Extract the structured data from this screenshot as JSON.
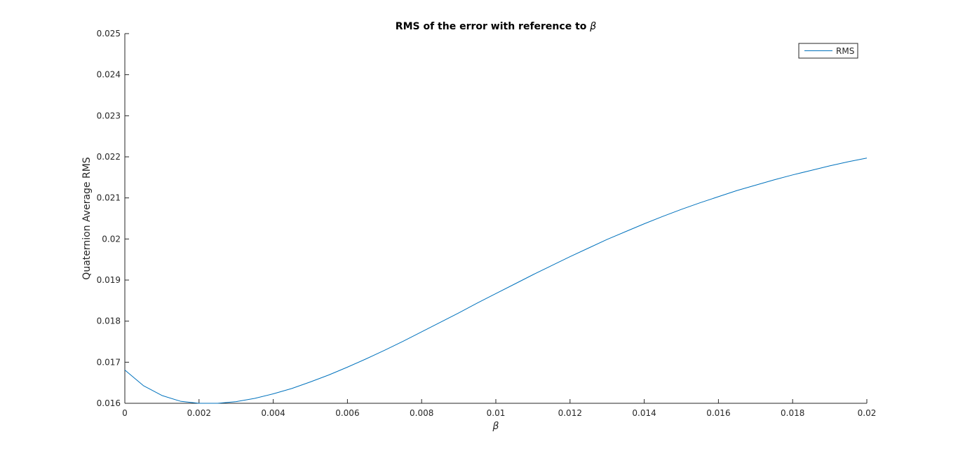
{
  "chart_data": {
    "type": "line",
    "title": "RMS of the error with reference to ",
    "title_symbol": "β",
    "xlabel": "β",
    "ylabel": "Quaternion Average RMS",
    "xlim": [
      0,
      0.02
    ],
    "ylim": [
      0.016,
      0.025
    ],
    "xticks": [
      "0",
      "0.002",
      "0.004",
      "0.006",
      "0.008",
      "0.01",
      "0.012",
      "0.014",
      "0.016",
      "0.018",
      "0.02"
    ],
    "yticks": [
      "0.016",
      "0.017",
      "0.018",
      "0.019",
      "0.02",
      "0.021",
      "0.022",
      "0.023",
      "0.024",
      "0.025"
    ],
    "grid": false,
    "legend_position": "top-right",
    "series_color": "#0072BD",
    "series": [
      {
        "name": "RMS",
        "x": [
          0,
          0.0005,
          0.001,
          0.0015,
          0.002,
          0.0025,
          0.003,
          0.0035,
          0.004,
          0.0045,
          0.005,
          0.0055,
          0.006,
          0.0065,
          0.007,
          0.0075,
          0.008,
          0.0085,
          0.009,
          0.0095,
          0.01,
          0.0105,
          0.011,
          0.0115,
          0.012,
          0.0125,
          0.013,
          0.0135,
          0.014,
          0.0145,
          0.015,
          0.0155,
          0.016,
          0.0165,
          0.017,
          0.0175,
          0.018,
          0.0185,
          0.019,
          0.0195,
          0.02
        ],
        "y": [
          0.01681,
          0.01643,
          0.01619,
          0.01605,
          0.016,
          0.016,
          0.01604,
          0.01612,
          0.01623,
          0.01636,
          0.01652,
          0.01669,
          0.01688,
          0.01708,
          0.01729,
          0.01751,
          0.01774,
          0.01797,
          0.0182,
          0.01844,
          0.01867,
          0.0189,
          0.01913,
          0.01935,
          0.01957,
          0.01978,
          0.01999,
          0.02018,
          0.02037,
          0.02055,
          0.02072,
          0.02088,
          0.02103,
          0.02118,
          0.02131,
          0.02144,
          0.02156,
          0.02167,
          0.02178,
          0.02188,
          0.02197
        ]
      }
    ]
  }
}
